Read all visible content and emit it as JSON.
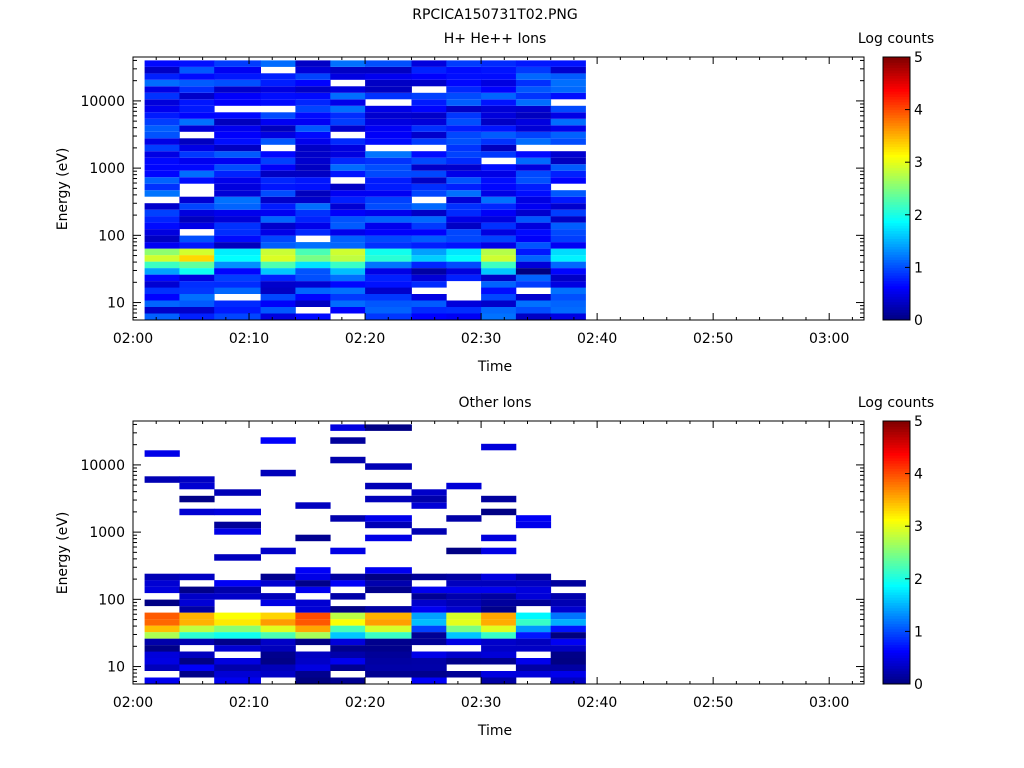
{
  "figure_title": "RPCICA150731T02.PNG",
  "colorbar": {
    "label": "Log counts",
    "ticks": [
      "0",
      "1",
      "2",
      "3",
      "4",
      "5"
    ],
    "range": [
      0,
      5
    ],
    "colormap": [
      "#00007f",
      "#0000ff",
      "#007fff",
      "#00ffff",
      "#7fff7f",
      "#ffff00",
      "#ff7f00",
      "#ff0000",
      "#7f0000"
    ]
  },
  "chart_data": [
    {
      "type": "heatmap",
      "title": "H+ He++ Ions",
      "xlabel": "Time",
      "ylabel": "Energy (eV)",
      "x_ticks": [
        "02:00",
        "02:10",
        "02:20",
        "02:30",
        "02:40",
        "02:50",
        "03:00"
      ],
      "y_ticks": [
        "10",
        "100",
        "1000",
        "10000"
      ],
      "xlim": [
        "02:00",
        "03:03"
      ],
      "ylim": [
        5.5,
        45000
      ],
      "y_scale": "log",
      "time_columns": [
        "02:01",
        "02:04",
        "02:07",
        "02:11",
        "02:14",
        "02:17",
        "02:20",
        "02:24",
        "02:27",
        "02:30",
        "02:33",
        "02:36"
      ],
      "data_end_time": "02:39",
      "energy_bins": 40,
      "energy_peak_ev": [
        45,
        55
      ],
      "peak_log_counts_by_column": [
        3.2,
        3.6,
        2.4,
        3.3,
        2.9,
        3.3,
        2.4,
        2.0,
        2.2,
        3.3,
        1.4,
        2.3
      ],
      "background_log_counts": [
        0.3,
        1.2
      ],
      "series": []
    },
    {
      "type": "heatmap",
      "title": "Other Ions",
      "xlabel": "Time",
      "ylabel": "Energy (eV)",
      "x_ticks": [
        "02:00",
        "02:10",
        "02:20",
        "02:30",
        "02:40",
        "02:50",
        "03:00"
      ],
      "y_ticks": [
        "10",
        "100",
        "1000",
        "10000"
      ],
      "xlim": [
        "02:00",
        "03:03"
      ],
      "ylim": [
        5.5,
        45000
      ],
      "y_scale": "log",
      "time_columns": [
        "02:01",
        "02:04",
        "02:07",
        "02:11",
        "02:14",
        "02:17",
        "02:20",
        "02:24",
        "02:27",
        "02:30",
        "02:33",
        "02:36"
      ],
      "data_end_time": "02:39",
      "energy_bins": 40,
      "energy_peak_ev": [
        45,
        55
      ],
      "peak_log_counts_by_column": [
        4.4,
        4.0,
        3.6,
        4.0,
        4.5,
        3.4,
        4.0,
        2.0,
        3.5,
        4.0,
        2.5,
        1.8
      ],
      "background_log_counts": [
        0.0,
        0.6
      ],
      "series": []
    }
  ]
}
